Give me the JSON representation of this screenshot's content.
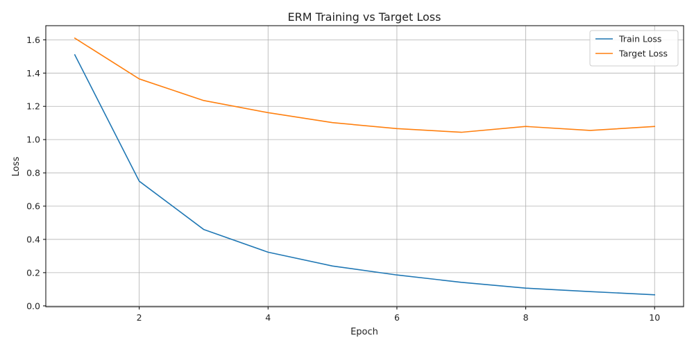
{
  "chart_data": {
    "type": "line",
    "title": "ERM Training vs Target Loss",
    "xlabel": "Epoch",
    "ylabel": "Loss",
    "x": [
      1,
      2,
      3,
      4,
      5,
      6,
      7,
      8,
      9,
      10
    ],
    "xlim": [
      0.55,
      10.45
    ],
    "ylim": [
      -0.005,
      1.685
    ],
    "x_ticks": [
      2,
      4,
      6,
      8,
      10
    ],
    "y_ticks": [
      0.0,
      0.2,
      0.4,
      0.6,
      0.8,
      1.0,
      1.2,
      1.4,
      1.6
    ],
    "grid": true,
    "legend_position": "top-right",
    "series": [
      {
        "name": "Train Loss",
        "color": "#1f77b4",
        "values": [
          1.51,
          0.75,
          0.46,
          0.323,
          0.24,
          0.186,
          0.142,
          0.107,
          0.086,
          0.067
        ]
      },
      {
        "name": "Target Loss",
        "color": "#ff7f0e",
        "values": [
          1.61,
          1.365,
          1.235,
          1.162,
          1.102,
          1.066,
          1.044,
          1.079,
          1.055,
          1.079
        ]
      }
    ]
  }
}
